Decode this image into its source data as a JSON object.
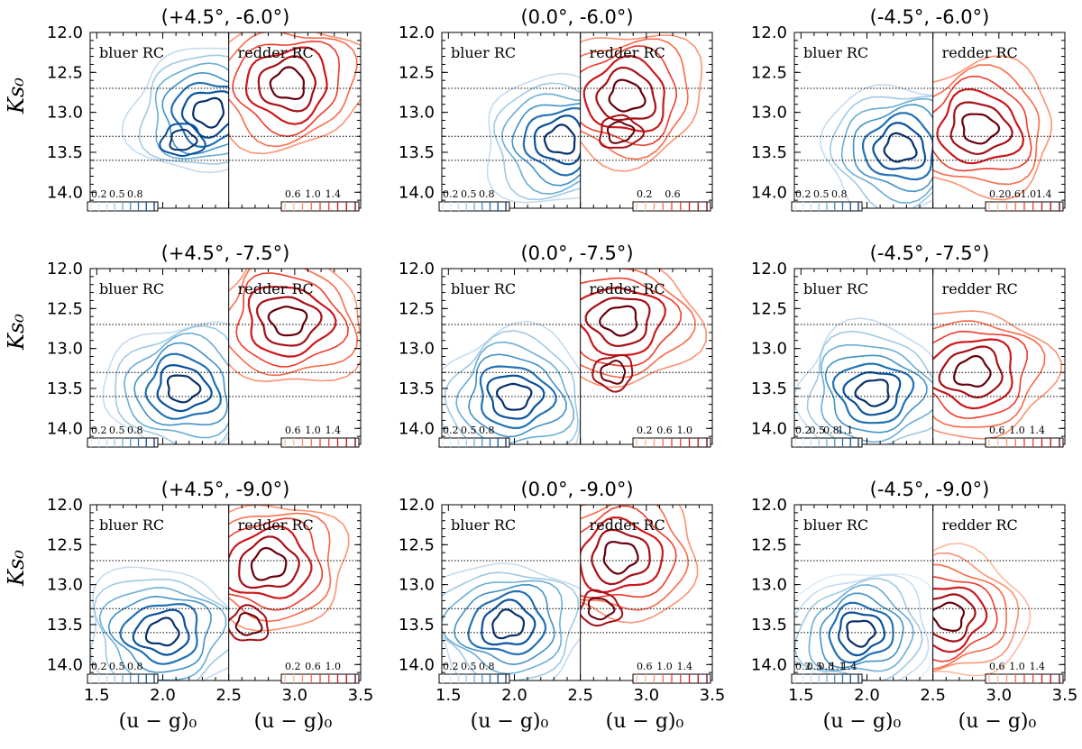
{
  "chart_data": {
    "type": "contour",
    "grid": false,
    "xlabel_left": "(u − g)₀",
    "xlabel_right": "(u − g)₀",
    "ylabel": "Ks₀",
    "xlim": [
      1.45,
      3.5
    ],
    "ylim": [
      14.2,
      12.0
    ],
    "x_ticks": [
      1.5,
      2.0,
      2.5,
      3.0,
      3.5
    ],
    "x_tick_labels": [
      "1.5",
      "2.0",
      "2.5",
      "3.0",
      "3.5"
    ],
    "y_ticks": [
      12.0,
      12.5,
      13.0,
      13.5,
      14.0
    ],
    "y_tick_labels": [
      "12.0",
      "12.5",
      "13.0",
      "13.5",
      "14.0"
    ],
    "divider_x": 2.5,
    "dotted_lines_y": [
      12.7,
      13.3,
      13.6
    ],
    "series_labels": {
      "blue": "bluer RC",
      "red": "redder RC"
    },
    "series_colors": {
      "blue": "#08306b",
      "red": "#67000d"
    },
    "panels": [
      {
        "title": "(+4.5°, -6.0°)",
        "blue": {
          "centers": [
            {
              "x": 2.35,
              "y": 13.0,
              "w": 1.0
            },
            {
              "x": 2.15,
              "y": 13.35,
              "w": 0.8
            }
          ],
          "levels": 7
        },
        "red": {
          "centers": [
            {
              "x": 2.95,
              "y": 12.65,
              "w": 1.0
            }
          ],
          "levels": 6
        },
        "blue_cbar_labels": [
          "0.2",
          "0.5",
          "0.8"
        ],
        "red_cbar_labels": [
          "0.6",
          "1.0",
          "1.4"
        ]
      },
      {
        "title": "(0.0°, -6.0°)",
        "blue": {
          "centers": [
            {
              "x": 2.35,
              "y": 13.35,
              "w": 1.0
            }
          ],
          "levels": 7
        },
        "red": {
          "centers": [
            {
              "x": 2.85,
              "y": 12.8,
              "w": 1.0
            },
            {
              "x": 2.8,
              "y": 13.25,
              "w": 0.9
            }
          ],
          "levels": 6
        },
        "blue_cbar_labels": [
          "0.2",
          "0.5",
          "0.8"
        ],
        "red_cbar_labels": [
          "0.2",
          "0.6"
        ]
      },
      {
        "title": "(-4.5°, -6.0°)",
        "blue": {
          "centers": [
            {
              "x": 2.25,
              "y": 13.45,
              "w": 1.0
            }
          ],
          "levels": 7
        },
        "red": {
          "centers": [
            {
              "x": 2.85,
              "y": 13.2,
              "w": 1.0
            }
          ],
          "levels": 6
        },
        "blue_cbar_labels": [
          "0.2",
          "0.5",
          "0.8"
        ],
        "red_cbar_labels": [
          "0.2",
          "0.6",
          "1.0",
          "1.4"
        ]
      },
      {
        "title": "(+4.5°, -7.5°)",
        "blue": {
          "centers": [
            {
              "x": 2.15,
              "y": 13.5,
              "w": 1.0
            }
          ],
          "levels": 7
        },
        "red": {
          "centers": [
            {
              "x": 2.95,
              "y": 12.65,
              "w": 1.0
            }
          ],
          "levels": 6
        },
        "blue_cbar_labels": [
          "0.2",
          "0.5",
          "0.8"
        ],
        "red_cbar_labels": [
          "0.6",
          "1.0",
          "1.4"
        ]
      },
      {
        "title": "(0.0°, -7.5°)",
        "blue": {
          "centers": [
            {
              "x": 2.0,
              "y": 13.6,
              "w": 1.0
            }
          ],
          "levels": 7
        },
        "red": {
          "centers": [
            {
              "x": 2.8,
              "y": 12.65,
              "w": 1.0
            },
            {
              "x": 2.75,
              "y": 13.3,
              "w": 0.85
            }
          ],
          "levels": 6
        },
        "blue_cbar_labels": [
          "0.2",
          "0.5",
          "0.8"
        ],
        "red_cbar_labels": [
          "0.2",
          "0.6",
          "1.0"
        ]
      },
      {
        "title": "(-4.5°, -7.5°)",
        "blue": {
          "centers": [
            {
              "x": 2.05,
              "y": 13.55,
              "w": 1.0
            }
          ],
          "levels": 7
        },
        "red": {
          "centers": [
            {
              "x": 2.8,
              "y": 13.3,
              "w": 1.0
            }
          ],
          "levels": 6
        },
        "blue_cbar_labels": [
          "0.2",
          "0.5",
          "0.8",
          "1.1"
        ],
        "red_cbar_labels": [
          "0.6",
          "1.0",
          "1.4"
        ]
      },
      {
        "title": "(+4.5°, -9.0°)",
        "blue": {
          "centers": [
            {
              "x": 2.0,
              "y": 13.6,
              "w": 1.0
            }
          ],
          "levels": 7
        },
        "red": {
          "centers": [
            {
              "x": 2.8,
              "y": 12.75,
              "w": 1.0
            },
            {
              "x": 2.65,
              "y": 13.5,
              "w": 0.9
            }
          ],
          "levels": 6
        },
        "blue_cbar_labels": [
          "0.2",
          "0.5",
          "0.8"
        ],
        "red_cbar_labels": [
          "0.2",
          "0.6",
          "1.0"
        ]
      },
      {
        "title": "(0.0°, -9.0°)",
        "blue": {
          "centers": [
            {
              "x": 1.95,
              "y": 13.5,
              "w": 1.0
            }
          ],
          "levels": 7
        },
        "red": {
          "centers": [
            {
              "x": 2.8,
              "y": 12.65,
              "w": 1.0
            },
            {
              "x": 2.65,
              "y": 13.3,
              "w": 0.8
            }
          ],
          "levels": 6
        },
        "blue_cbar_labels": [
          "0.2",
          "0.5",
          "0.8"
        ],
        "red_cbar_labels": [
          "0.6",
          "1.0",
          "1.4"
        ]
      },
      {
        "title": "(-4.5°, -9.0°)",
        "blue": {
          "centers": [
            {
              "x": 1.95,
              "y": 13.6,
              "w": 1.0
            }
          ],
          "levels": 8
        },
        "red": {
          "centers": [
            {
              "x": 2.62,
              "y": 13.4,
              "w": 1.0
            }
          ],
          "levels": 7
        },
        "blue_cbar_labels": [
          "0.2",
          "0.5",
          "0.8",
          "1.1",
          "1.4"
        ],
        "red_cbar_labels": [
          "0.6",
          "1.0",
          "1.4"
        ]
      }
    ]
  }
}
